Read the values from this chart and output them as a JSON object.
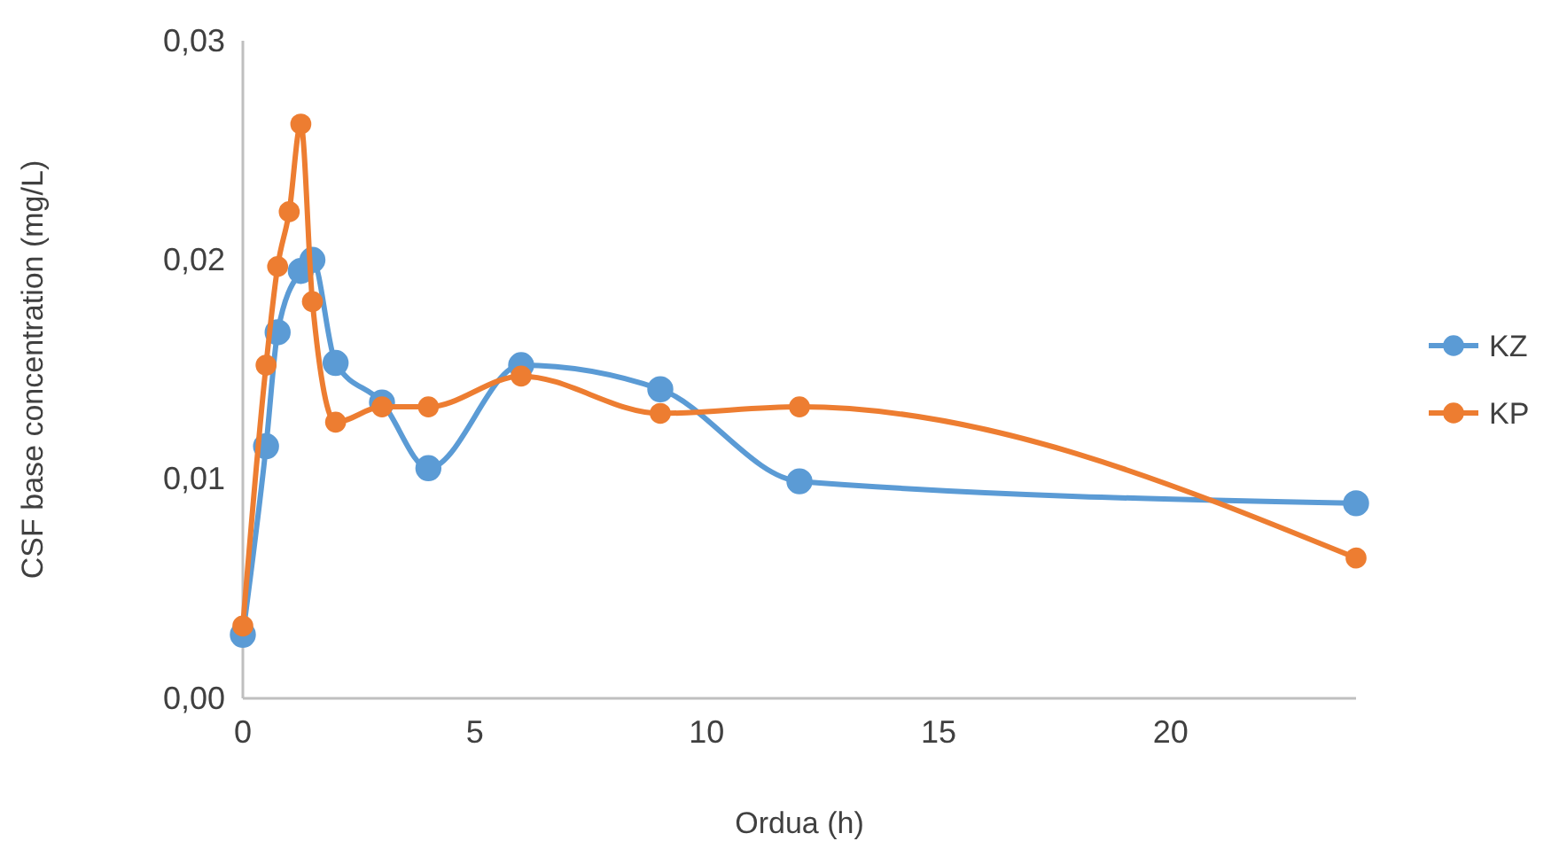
{
  "chart_data": {
    "type": "line",
    "xlabel": "Ordua (h)",
    "ylabel": "CSF base concentration (mg/L)",
    "xlim": [
      0,
      24
    ],
    "xticks": [
      0,
      5,
      10,
      15,
      20
    ],
    "ylim": [
      0,
      0.03
    ],
    "yticks": [
      {
        "value": 0,
        "label": "0,00"
      },
      {
        "value": 0.01,
        "label": "0,01"
      },
      {
        "value": 0.02,
        "label": "0,02"
      },
      {
        "value": 0.03,
        "label": "0,03"
      }
    ],
    "grid": false,
    "legend": "right",
    "marker": "circle",
    "line_style": "solid",
    "series": [
      {
        "name": "KZ",
        "color": "#5b9bd5",
        "x": [
          0,
          0.5,
          0.75,
          1,
          1.25,
          1.5,
          2,
          3,
          4,
          6,
          9,
          12,
          24
        ],
        "values": [
          0.0029,
          0.0115,
          0.0167,
          null,
          0.0195,
          0.02,
          0.0153,
          0.0135,
          0.0105,
          0.0152,
          0.0141,
          0.0099,
          0.0089
        ]
      },
      {
        "name": "KP",
        "color": "#ed7d31",
        "x": [
          0,
          0.5,
          0.75,
          1,
          1.25,
          1.5,
          2,
          3,
          4,
          6,
          9,
          12,
          24
        ],
        "values": [
          0.0033,
          0.0152,
          0.0197,
          0.0222,
          0.0262,
          0.0181,
          0.0126,
          0.0133,
          0.0133,
          0.0147,
          0.013,
          0.0133,
          0.0064
        ]
      }
    ]
  }
}
